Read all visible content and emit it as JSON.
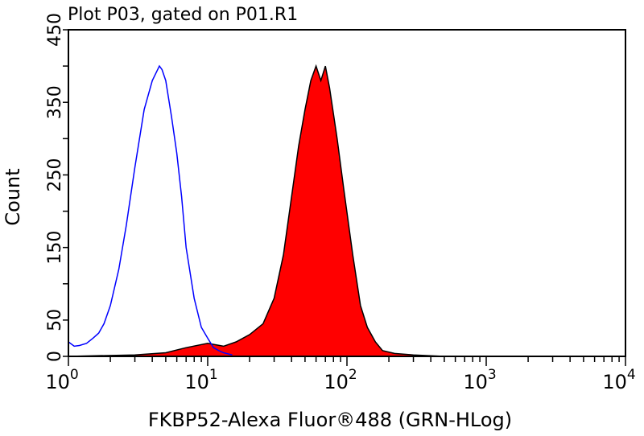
{
  "chart_data": {
    "type": "area",
    "title": "Plot P03, gated on P01.R1",
    "xlabel": "FKBP52-Alexa Fluor®488 (GRN-HLog)",
    "ylabel": "Count",
    "x_scale": "log",
    "xlim": [
      1,
      10000
    ],
    "ylim": [
      0,
      450
    ],
    "x_tick_labels": [
      {
        "base": "10",
        "exp": "0"
      },
      {
        "base": "10",
        "exp": "1"
      },
      {
        "base": "10",
        "exp": "2"
      },
      {
        "base": "10",
        "exp": "3"
      },
      {
        "base": "10",
        "exp": "4"
      }
    ],
    "y_ticks": [
      0,
      50,
      100,
      150,
      200,
      250,
      300,
      350,
      400,
      450
    ],
    "y_tick_labels": [
      "0",
      "50",
      "150",
      "250",
      "350",
      "450"
    ],
    "grid": false,
    "series": [
      {
        "style": "outline",
        "color": "#0000ff",
        "x": [
          1.0,
          1.1,
          1.2,
          1.35,
          1.5,
          1.65,
          1.8,
          2.0,
          2.3,
          2.6,
          3.0,
          3.5,
          4.0,
          4.5,
          4.7,
          5.0,
          5.5,
          6.0,
          6.5,
          7.0,
          8.0,
          9.0,
          10,
          11,
          12,
          13,
          15
        ],
        "y": [
          20,
          14,
          15,
          18,
          25,
          32,
          45,
          70,
          120,
          180,
          260,
          340,
          380,
          400,
          395,
          380,
          330,
          280,
          220,
          150,
          80,
          40,
          25,
          12,
          8,
          5,
          2
        ]
      },
      {
        "style": "filled",
        "color": "#ff0000",
        "outline": "#000000",
        "x": [
          1,
          3,
          5,
          7,
          10,
          13,
          16,
          20,
          25,
          30,
          35,
          40,
          45,
          50,
          55,
          60,
          65,
          70,
          75,
          85,
          95,
          110,
          125,
          140,
          160,
          180,
          220,
          300,
          500
        ],
        "y": [
          0,
          2,
          5,
          12,
          18,
          14,
          20,
          30,
          45,
          80,
          140,
          220,
          290,
          340,
          380,
          400,
          380,
          400,
          370,
          300,
          230,
          140,
          70,
          40,
          20,
          8,
          4,
          2,
          0
        ]
      }
    ]
  }
}
